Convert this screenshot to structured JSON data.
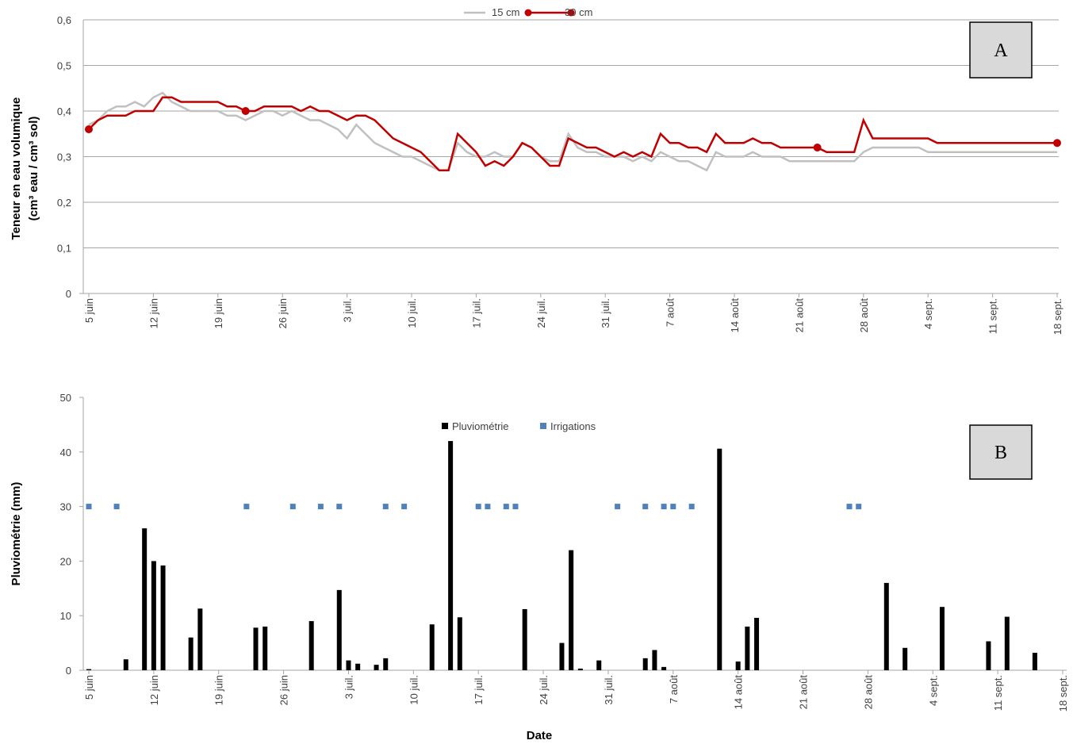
{
  "chart_data": [
    {
      "type": "line",
      "ylabel": [
        "Teneur en eau volumique",
        "(cm³ eau / cm³ sol)"
      ],
      "annotation": "A",
      "grid": true,
      "x": [
        0,
        1,
        2,
        3,
        4,
        5,
        6,
        7,
        8,
        9,
        10,
        11,
        12,
        13,
        14,
        15,
        16,
        17,
        18,
        19,
        20,
        21,
        22,
        23,
        24,
        25,
        26,
        27,
        28,
        29,
        30,
        31,
        32,
        33,
        34,
        35,
        36,
        37,
        38,
        39,
        40,
        41,
        42,
        43,
        44,
        45,
        46,
        47,
        48,
        49,
        50,
        51,
        52,
        53,
        54,
        55,
        56,
        57,
        58,
        59,
        60,
        61,
        62,
        63,
        64,
        65,
        66,
        67,
        68,
        69,
        70,
        71,
        72,
        73,
        74,
        75,
        76,
        77,
        78,
        79,
        80,
        81,
        82,
        83,
        84,
        85,
        86,
        87,
        88,
        89,
        90,
        91,
        92,
        93,
        94,
        95,
        96,
        97,
        98,
        99,
        100,
        101,
        102,
        103,
        104,
        105
      ],
      "xlim": [
        0,
        105
      ],
      "xticks": [
        {
          "value": 0,
          "label": "5 juin"
        },
        {
          "value": 7,
          "label": "12 juin"
        },
        {
          "value": 14,
          "label": "19 juin"
        },
        {
          "value": 21,
          "label": "26 juin"
        },
        {
          "value": 28,
          "label": "3 juil."
        },
        {
          "value": 35,
          "label": "10 juil."
        },
        {
          "value": 42,
          "label": "17 juil."
        },
        {
          "value": 49,
          "label": "24 juil."
        },
        {
          "value": 56,
          "label": "31 juil."
        },
        {
          "value": 63,
          "label": "7 août"
        },
        {
          "value": 70,
          "label": "14 août"
        },
        {
          "value": 77,
          "label": "21 août"
        },
        {
          "value": 84,
          "label": "28 août"
        },
        {
          "value": 91,
          "label": "4 sept."
        },
        {
          "value": 98,
          "label": "11 sept."
        },
        {
          "value": 105,
          "label": "18 sept."
        }
      ],
      "ylim": [
        0,
        0.6
      ],
      "yticks": [
        0,
        {
          "value": 0.1,
          "label": "0,1"
        },
        {
          "value": 0.2,
          "label": "0,2"
        },
        {
          "value": 0.3,
          "label": "0,3"
        },
        {
          "value": 0.4,
          "label": "0,4"
        },
        {
          "value": 0.5,
          "label": "0,5"
        },
        {
          "value": 0.6,
          "label": "0,6"
        }
      ],
      "series": [
        {
          "name": "15 cm",
          "color": "#c0c0c0",
          "values": [
            0.37,
            0.38,
            0.4,
            0.41,
            0.41,
            0.42,
            0.41,
            0.43,
            0.44,
            0.42,
            0.41,
            0.4,
            0.4,
            0.4,
            0.4,
            0.39,
            0.39,
            0.38,
            0.39,
            0.4,
            0.4,
            0.39,
            0.4,
            0.39,
            0.38,
            0.38,
            0.37,
            0.36,
            0.34,
            0.37,
            0.35,
            0.33,
            0.32,
            0.31,
            0.3,
            0.3,
            0.29,
            0.28,
            0.27,
            0.27,
            0.33,
            0.31,
            0.3,
            0.3,
            0.31,
            0.3,
            0.3,
            0.33,
            0.32,
            0.3,
            0.29,
            0.29,
            0.35,
            0.32,
            0.31,
            0.31,
            0.3,
            0.3,
            0.3,
            0.29,
            0.3,
            0.29,
            0.31,
            0.3,
            0.29,
            0.29,
            0.28,
            0.27,
            0.31,
            0.3,
            0.3,
            0.3,
            0.31,
            0.3,
            0.3,
            0.3,
            0.29,
            0.29,
            0.29,
            0.29,
            0.29,
            0.29,
            0.29,
            0.29,
            0.31,
            0.32,
            0.32,
            0.32,
            0.32,
            0.32,
            0.32,
            0.31,
            0.31,
            0.31,
            0.31,
            0.31,
            0.31,
            0.31,
            0.31,
            0.31,
            0.31,
            0.31,
            0.31,
            0.31,
            0.31,
            0.31
          ]
        },
        {
          "name": "30 cm",
          "color": "#c00000",
          "values": [
            0.36,
            0.38,
            0.39,
            0.39,
            0.39,
            0.4,
            0.4,
            0.4,
            0.43,
            0.43,
            0.42,
            0.42,
            0.42,
            0.42,
            0.42,
            0.41,
            0.41,
            0.4,
            0.4,
            0.41,
            0.41,
            0.41,
            0.41,
            0.4,
            0.41,
            0.4,
            0.4,
            0.39,
            0.38,
            0.39,
            0.39,
            0.38,
            0.36,
            0.34,
            0.33,
            0.32,
            0.31,
            0.29,
            0.27,
            0.27,
            0.35,
            0.33,
            0.31,
            0.28,
            0.29,
            0.28,
            0.3,
            0.33,
            0.32,
            0.3,
            0.28,
            0.28,
            0.34,
            0.33,
            0.32,
            0.32,
            0.31,
            0.3,
            0.31,
            0.3,
            0.31,
            0.3,
            0.35,
            0.33,
            0.33,
            0.32,
            0.32,
            0.31,
            0.35,
            0.33,
            0.33,
            0.33,
            0.34,
            0.33,
            0.33,
            0.32,
            0.32,
            0.32,
            0.32,
            0.32,
            0.31,
            0.31,
            0.31,
            0.31,
            0.38,
            0.34,
            0.34,
            0.34,
            0.34,
            0.34,
            0.34,
            0.34,
            0.33,
            0.33,
            0.33,
            0.33,
            0.33,
            0.33,
            0.33,
            0.33,
            0.33,
            0.33,
            0.33,
            0.33,
            0.33,
            0.33
          ]
        }
      ]
    },
    {
      "type": "bar",
      "ylabel": [
        "Pluviométrie (mm)"
      ],
      "xlabel": "Date",
      "annotation": "B",
      "grid": false,
      "xlim": [
        0,
        105
      ],
      "xticks": [
        {
          "value": 0,
          "label": "5 juin"
        },
        {
          "value": 7,
          "label": "12 juin"
        },
        {
          "value": 14,
          "label": "19 juin"
        },
        {
          "value": 21,
          "label": "26 juin"
        },
        {
          "value": 28,
          "label": "3 juil."
        },
        {
          "value": 35,
          "label": "10 juil."
        },
        {
          "value": 42,
          "label": "17 juil."
        },
        {
          "value": 49,
          "label": "24 juil."
        },
        {
          "value": 56,
          "label": "31 juil."
        },
        {
          "value": 63,
          "label": "7 août"
        },
        {
          "value": 70,
          "label": "14 août"
        },
        {
          "value": 77,
          "label": "21 août"
        },
        {
          "value": 84,
          "label": "28 août"
        },
        {
          "value": 91,
          "label": "4 sept."
        },
        {
          "value": 98,
          "label": "11 sept."
        },
        {
          "value": 105,
          "label": "18 sept."
        }
      ],
      "ylim": [
        0,
        50
      ],
      "yticks": [
        0,
        10,
        20,
        30,
        40,
        50
      ],
      "series": [
        {
          "name": "Pluviométrie",
          "type": "bar",
          "color": "#000000",
          "x": [
            0,
            4,
            6,
            7,
            8,
            11,
            12,
            18,
            19,
            24,
            27,
            28,
            29,
            31,
            32,
            37,
            39,
            40,
            47,
            51,
            52,
            53,
            55,
            60,
            61,
            62,
            68,
            70,
            71,
            72,
            86,
            88,
            92,
            97,
            99,
            102
          ],
          "values": [
            0.2,
            2,
            26,
            20,
            19.2,
            6,
            11.3,
            7.8,
            8,
            9,
            14.7,
            1.8,
            1.2,
            1,
            2.2,
            8.4,
            42,
            9.7,
            11.2,
            5,
            22,
            0.3,
            1.8,
            2.2,
            3.7,
            0.6,
            40.6,
            1.6,
            8,
            9.6,
            16,
            4.1,
            11.6,
            5.3,
            9.8,
            3.2
          ]
        },
        {
          "name": "Irrigations",
          "type": "scatter",
          "color": "#4f81bd",
          "x": [
            0,
            3,
            17,
            22,
            25,
            27,
            32,
            34,
            42,
            43,
            45,
            46,
            57,
            60,
            62,
            63,
            65,
            82,
            83
          ],
          "values": [
            30,
            30,
            30,
            30,
            30,
            30,
            30,
            30,
            30,
            30,
            30,
            30,
            30,
            30,
            30,
            30,
            30,
            30,
            30
          ]
        }
      ]
    }
  ]
}
